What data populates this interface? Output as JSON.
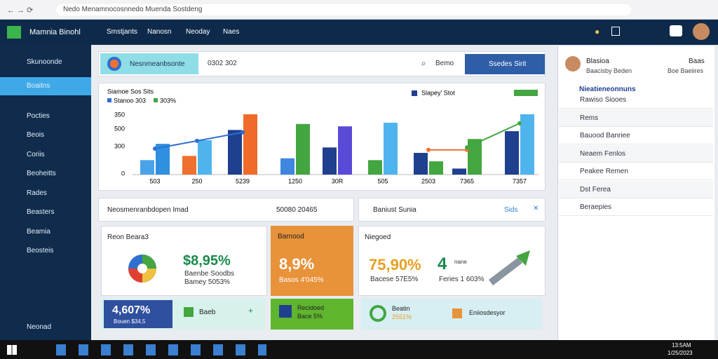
{
  "browser": {
    "address": "Nedo Menamnocosnnedo Muenda Sostdeng"
  },
  "app": {
    "brand": "Mamnia Binohl",
    "nav": [
      "Smstjants",
      "Nanosn",
      "Neoday",
      "Naes"
    ]
  },
  "sidebar": {
    "items": [
      "Skunoonde",
      "Boaitns",
      "Pocties",
      "Beois",
      "Coriis",
      "Beoheitts",
      "Rades",
      "Beasters",
      "Beamia",
      "Beosteis"
    ],
    "footer": "Neonad"
  },
  "search": {
    "label": "Nesnmeanbsonte",
    "value": "0302 302",
    "right": "Bemo",
    "button": "Ssedes Sirit"
  },
  "chart": {
    "type": "bar",
    "title": "Siamoe Sos Sits",
    "legend": [
      "Stanoo 303",
      "303%",
      "Slapey' Stot"
    ],
    "y_labels": [
      "350",
      "500",
      "300",
      "0"
    ],
    "categories": [
      "503",
      "250",
      "5239",
      "1250",
      "30R",
      "505",
      "2503",
      "7365",
      "7357"
    ],
    "values": [
      [
        24,
        51
      ],
      [
        31,
        57
      ],
      [
        74,
        100
      ],
      [
        27,
        84
      ],
      [
        45,
        80
      ],
      [
        24,
        86
      ],
      [
        36,
        22
      ],
      [
        10,
        59
      ],
      [
        72,
        100
      ]
    ],
    "colors": [
      [
        "#4aa3e8",
        "#2f8fe0"
      ],
      [
        "#f07030",
        "#4fb4ee"
      ],
      [
        "#1f3f8f",
        "#f06a2a"
      ],
      [
        "#3f86e0",
        "#43a640"
      ],
      [
        "#1f3f8f",
        "#5a4ad8"
      ],
      [
        "#43a640",
        "#4fb4ee"
      ],
      [
        "#1f3f8f",
        "#43a640"
      ],
      [
        "#1f3f8f",
        "#43a640"
      ],
      [
        "#1f3f8f",
        "#4fb4ee"
      ]
    ],
    "ylim": [
      0,
      100
    ],
    "lines": [
      {
        "color": "#2f6fd0",
        "values": [
          43,
          56,
          70,
          null,
          null,
          null,
          null,
          null,
          null
        ]
      },
      {
        "color": "#f07030",
        "values": [
          null,
          null,
          null,
          null,
          null,
          null,
          41,
          41,
          null
        ]
      },
      {
        "color": "#43a640",
        "values": [
          null,
          null,
          null,
          null,
          null,
          null,
          null,
          45,
          85
        ]
      }
    ]
  },
  "row2": {
    "left": "Neosmenranbdopen Imad",
    "value": "50080 20465",
    "panel": "Baniust Sunia",
    "link": "Sids"
  },
  "cards": [
    {
      "title": "Reon Beara3",
      "value": "$8,95%",
      "sub1": "Baenbe Soodbs",
      "sub2": "Bamey 5053%"
    },
    {
      "title": "Barnood",
      "value": "8,9%",
      "sub1": "Basos 4'045%"
    },
    {
      "title": "Niegoed",
      "value": "75,90%",
      "sub1": "Bacese 57E5%",
      "value2": "4",
      "small": "nane",
      "sub2": "Feries 1 603%"
    }
  ],
  "tiles": [
    {
      "value": "4,607%",
      "sub": "Bouen $34,5"
    },
    {
      "label": "Baeb"
    },
    {
      "label": "Recidoed",
      "sub": "Bace 5%"
    },
    {
      "label": "Beatin",
      "sub": "2551%"
    },
    {
      "label": "Eniiosdesyor"
    }
  ],
  "right": {
    "user": "Blasioa",
    "user_sub": "Baacisby Beden",
    "btn": "Baas",
    "btn_sub": "Boe Baeiires",
    "heading": "Nieatieneonnuns",
    "items": [
      "Rawiso Siooes",
      "Rems",
      "Bauood Banriee",
      "Neaem Fenlos",
      "Peakee Remen",
      "Dst Ferea",
      "Beraepies"
    ]
  },
  "taskbar": {
    "time": "13:5AM",
    "date": "1/25/2023"
  }
}
